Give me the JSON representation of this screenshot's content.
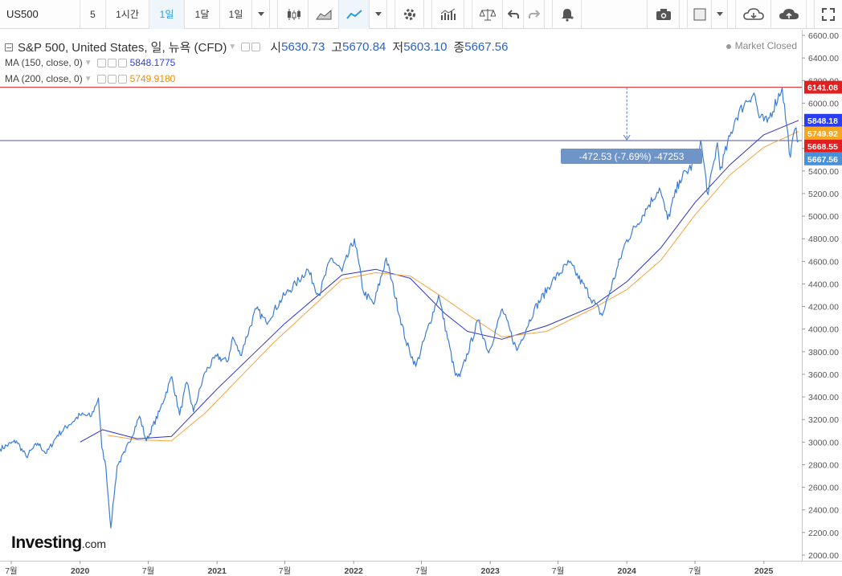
{
  "toolbar": {
    "symbol": "US500",
    "intervals": [
      "5",
      "1시간",
      "1일",
      "1달",
      "1일"
    ],
    "active_interval_index": 2,
    "icons": [
      "candle-chart-icon",
      "area-chart-icon",
      "line-chart-icon",
      "dropdown-icon",
      "settings-icon",
      "indicators-icon",
      "compare-icon",
      "undo-icon",
      "redo-icon",
      "alert-icon",
      "camera-icon",
      "color-icon",
      "dropdown-icon",
      "cloud-save-icon",
      "cloud-upload-icon",
      "fullscreen-icon"
    ]
  },
  "legend": {
    "title": "S&P 500, United States, 일, 뉴욕 (CFD)",
    "open_label": "시",
    "open": "5630.73",
    "high_label": "고",
    "high": "5670.84",
    "low_label": "저",
    "low": "5603.10",
    "close_label": "종",
    "close": "5667.56",
    "ma150_label": "MA (150, close, 0)",
    "ma150_value": "5848.1775",
    "ma200_label": "MA (200, close, 0)",
    "ma200_value": "5749.9180",
    "market_status": "Market Closed"
  },
  "logo": {
    "name": "Investing",
    "suffix": ".com"
  },
  "chart_data": {
    "type": "line",
    "ylim": [
      1950,
      6650
    ],
    "xlim": [
      "2019-06-01",
      "2025-04-04"
    ],
    "y_ticks": [
      2000,
      2200,
      2400,
      2600,
      2800,
      3000,
      3200,
      3400,
      3600,
      3800,
      4000,
      4200,
      4400,
      4600,
      4800,
      5000,
      5200,
      5400,
      5600,
      5800,
      6000,
      6200,
      6400,
      6600
    ],
    "y_tick_labels": [
      "2000.00",
      "2200.00",
      "2400.00",
      "2600.00",
      "2800.00",
      "3000.00",
      "3200.00",
      "3400.00",
      "3600.00",
      "3800.00",
      "4000.00",
      "4200.00",
      "4400.00",
      "4600.00",
      "4800.00",
      "5000.00",
      "5200.00",
      "5400.00",
      "5600.00",
      "5800.00",
      "6000.00",
      "6200.00",
      "6400.00",
      "6600.00"
    ],
    "x_ticks": [
      {
        "date": "2019-07-01",
        "label": "7월",
        "bold": false
      },
      {
        "date": "2020-01-01",
        "label": "2020",
        "bold": true
      },
      {
        "date": "2020-07-01",
        "label": "7월",
        "bold": false
      },
      {
        "date": "2021-01-01",
        "label": "2021",
        "bold": true
      },
      {
        "date": "2021-07-01",
        "label": "7월",
        "bold": false
      },
      {
        "date": "2022-01-01",
        "label": "2022",
        "bold": true
      },
      {
        "date": "2022-07-01",
        "label": "7월",
        "bold": false
      },
      {
        "date": "2023-01-01",
        "label": "2023",
        "bold": true
      },
      {
        "date": "2023-07-01",
        "label": "7월",
        "bold": false
      },
      {
        "date": "2024-01-01",
        "label": "2024",
        "bold": true
      },
      {
        "date": "2024-07-01",
        "label": "7월",
        "bold": false
      },
      {
        "date": "2025-01-01",
        "label": "2025",
        "bold": true
      }
    ],
    "series": [
      {
        "color": "#3d7dd6",
        "points": [
          [
            "2019-06-01",
            2940
          ],
          [
            "2019-07-15",
            3010
          ],
          [
            "2019-08-10",
            2870
          ],
          [
            "2019-09-10",
            2990
          ],
          [
            "2019-10-03",
            2900
          ],
          [
            "2019-11-01",
            3060
          ],
          [
            "2019-12-01",
            3150
          ],
          [
            "2020-01-01",
            3240
          ],
          [
            "2020-01-31",
            3230
          ],
          [
            "2020-02-19",
            3390
          ],
          [
            "2020-02-28",
            2950
          ],
          [
            "2020-03-10",
            2780
          ],
          [
            "2020-03-23",
            2240
          ],
          [
            "2020-04-09",
            2790
          ],
          [
            "2020-04-30",
            2910
          ],
          [
            "2020-06-08",
            3230
          ],
          [
            "2020-06-26",
            3010
          ],
          [
            "2020-07-31",
            3270
          ],
          [
            "2020-09-02",
            3580
          ],
          [
            "2020-09-23",
            3240
          ],
          [
            "2020-10-12",
            3530
          ],
          [
            "2020-10-30",
            3270
          ],
          [
            "2020-11-30",
            3620
          ],
          [
            "2020-12-31",
            3760
          ],
          [
            "2021-01-29",
            3710
          ],
          [
            "2021-02-12",
            3930
          ],
          [
            "2021-03-04",
            3770
          ],
          [
            "2021-04-16",
            4180
          ],
          [
            "2021-05-12",
            4060
          ],
          [
            "2021-06-30",
            4300
          ],
          [
            "2021-07-30",
            4400
          ],
          [
            "2021-08-31",
            4530
          ],
          [
            "2021-09-30",
            4300
          ],
          [
            "2021-11-02",
            4630
          ],
          [
            "2021-12-01",
            4510
          ],
          [
            "2022-01-03",
            4800
          ],
          [
            "2022-01-27",
            4330
          ],
          [
            "2022-02-24",
            4220
          ],
          [
            "2022-03-29",
            4630
          ],
          [
            "2022-05-20",
            3900
          ],
          [
            "2022-06-16",
            3670
          ],
          [
            "2022-08-16",
            4300
          ],
          [
            "2022-09-30",
            3590
          ],
          [
            "2022-10-12",
            3580
          ],
          [
            "2022-11-30",
            4080
          ],
          [
            "2022-12-28",
            3790
          ],
          [
            "2023-02-02",
            4180
          ],
          [
            "2023-03-13",
            3810
          ],
          [
            "2023-04-28",
            4170
          ],
          [
            "2023-06-15",
            4420
          ],
          [
            "2023-07-31",
            4590
          ],
          [
            "2023-10-27",
            4120
          ],
          [
            "2023-12-29",
            4770
          ],
          [
            "2024-02-29",
            5100
          ],
          [
            "2024-03-28",
            5250
          ],
          [
            "2024-04-19",
            4970
          ],
          [
            "2024-05-21",
            5320
          ],
          [
            "2024-06-30",
            5470
          ],
          [
            "2024-07-16",
            5670
          ],
          [
            "2024-08-05",
            5190
          ],
          [
            "2024-08-30",
            5650
          ],
          [
            "2024-09-06",
            5410
          ],
          [
            "2024-10-17",
            5860
          ],
          [
            "2024-11-11",
            6000
          ],
          [
            "2024-12-06",
            6090
          ],
          [
            "2024-12-20",
            5870
          ],
          [
            "2025-01-10",
            5830
          ],
          [
            "2025-02-19",
            6140
          ],
          [
            "2025-03-13",
            5520
          ],
          [
            "2025-03-25",
            5770
          ],
          [
            "2025-04-04",
            5667.56
          ]
        ]
      },
      {
        "name": "MA (150, close, 0)",
        "color": "#3030c8",
        "points": [
          [
            "2020-01-01",
            3000
          ],
          [
            "2020-03-01",
            3110
          ],
          [
            "2020-06-01",
            3030
          ],
          [
            "2020-09-01",
            3050
          ],
          [
            "2021-01-01",
            3470
          ],
          [
            "2021-07-01",
            4050
          ],
          [
            "2021-12-01",
            4480
          ],
          [
            "2022-03-01",
            4530
          ],
          [
            "2022-06-01",
            4450
          ],
          [
            "2022-09-01",
            4140
          ],
          [
            "2022-11-01",
            3980
          ],
          [
            "2023-02-01",
            3910
          ],
          [
            "2023-06-01",
            4030
          ],
          [
            "2023-10-01",
            4200
          ],
          [
            "2024-01-01",
            4420
          ],
          [
            "2024-04-01",
            4720
          ],
          [
            "2024-07-01",
            5120
          ],
          [
            "2024-10-01",
            5450
          ],
          [
            "2025-01-01",
            5720
          ],
          [
            "2025-04-04",
            5848.18
          ]
        ]
      },
      {
        "name": "MA (200, close, 0)",
        "color": "#f5a340",
        "points": [
          [
            "2020-03-15",
            3060
          ],
          [
            "2020-06-01",
            3020
          ],
          [
            "2020-09-01",
            3010
          ],
          [
            "2020-12-01",
            3260
          ],
          [
            "2021-06-01",
            3880
          ],
          [
            "2021-12-01",
            4440
          ],
          [
            "2022-03-01",
            4500
          ],
          [
            "2022-06-01",
            4470
          ],
          [
            "2022-09-01",
            4270
          ],
          [
            "2022-11-01",
            4130
          ],
          [
            "2023-02-01",
            3930
          ],
          [
            "2023-06-01",
            3980
          ],
          [
            "2023-10-01",
            4180
          ],
          [
            "2024-01-01",
            4350
          ],
          [
            "2024-04-01",
            4610
          ],
          [
            "2024-07-01",
            5010
          ],
          [
            "2024-10-01",
            5360
          ],
          [
            "2025-01-01",
            5610
          ],
          [
            "2025-04-04",
            5749.92
          ]
        ]
      }
    ],
    "ref_lines": [
      {
        "value": 6141.08,
        "color": "#e02020",
        "label": "6141.08"
      },
      {
        "value": 5668.55,
        "color": "#555599",
        "label": "5668.55"
      }
    ],
    "price_tags": [
      {
        "value": 6141.08,
        "label": "6141.08",
        "color": "#e02020"
      },
      {
        "value": 5848.18,
        "label": "5848.18",
        "color": "#2b3cf5"
      },
      {
        "value": 5749.92,
        "label": "5749.92",
        "color": "#f5a623"
      },
      {
        "value": 5668.55,
        "label": "5668.55",
        "color": "#e02020"
      },
      {
        "value": 5667.56,
        "label": "5667.56",
        "color": "#4a90d9"
      }
    ],
    "measure": {
      "date": "2024-01-01",
      "from": 6141.08,
      "to": 5668.55,
      "label": "-472.53 (-7.69%) -47253"
    }
  }
}
